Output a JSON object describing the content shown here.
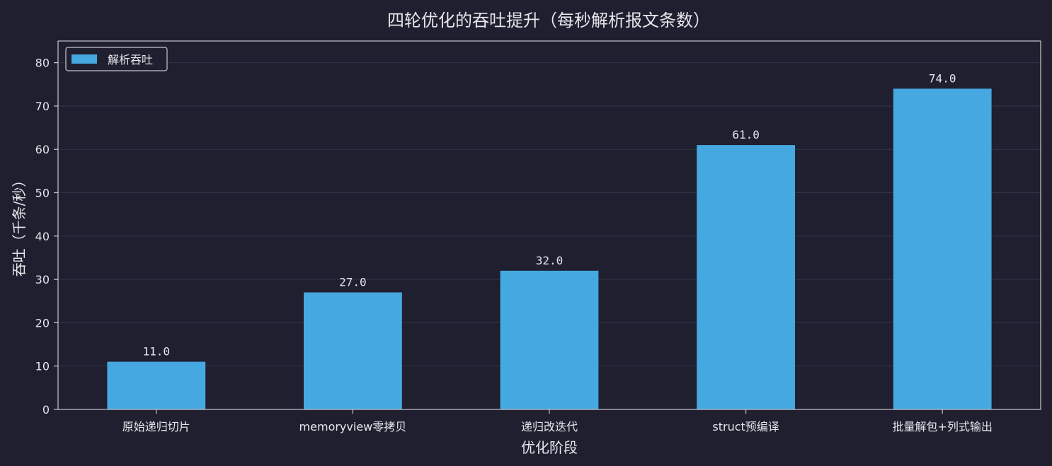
{
  "chart_data": {
    "type": "bar",
    "title": "四轮优化的吞吐提升（每秒解析报文条数）",
    "xlabel": "优化阶段",
    "ylabel": "吞吐（千条/秒）",
    "categories": [
      "原始递归切片",
      "memoryview零拷贝",
      "递归改迭代",
      "struct预编译",
      "批量解包+列式输出"
    ],
    "series": [
      {
        "name": "解析吞吐",
        "values": [
          11.0,
          27.0,
          32.0,
          61.0,
          74.0
        ]
      }
    ],
    "data_labels": [
      "11.0",
      "27.0",
      "32.0",
      "61.0",
      "74.0"
    ],
    "ylim": [
      0,
      85
    ],
    "yticks": [
      0,
      10,
      20,
      30,
      40,
      50,
      60,
      70,
      80
    ],
    "grid": true,
    "legend_position": "top-left"
  },
  "colors": {
    "background": "#1f1f30",
    "bar": "#46a8e0",
    "text": "#e6e6ea",
    "axis": "#c8c8d0",
    "grid": "#34344a"
  }
}
